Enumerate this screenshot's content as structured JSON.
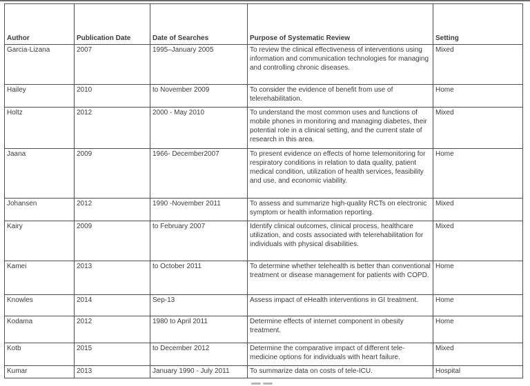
{
  "table": {
    "columns": [
      "Author",
      "Publication Date",
      "Date of Searches",
      "Purpose of Systematic Review",
      "Setting"
    ],
    "rows": [
      {
        "author": "Garcia-Lizana",
        "publication_date": "2007",
        "date_of_searches": "1995–January 2005",
        "purpose": "To review the clinical effectiveness of interventions using information and communication technologies for managing and controlling chronic diseases.",
        "setting": "Mixed"
      },
      {
        "author": "Hailey",
        "publication_date": "2010",
        "date_of_searches": "to November 2009",
        "purpose": "To consider the evidence of benefit from use of telerehabilitation.",
        "setting": "Home"
      },
      {
        "author": "Holtz",
        "publication_date": "2012",
        "date_of_searches": "2000 - May 2010",
        "purpose": "To understand the most common uses and functions of mobile phones in monitoring and managing diabetes, their potential role in a clinical setting, and the current state of research in this area.",
        "setting": "Mixed"
      },
      {
        "author": "Jaana",
        "publication_date": "2009",
        "date_of_searches": "1966- December2007",
        "purpose": "To present evidence on effects of home telemonitoring for respiratory conditions in relation to data quality, patient medical condition, utilization of health services, feasibility and use, and economic viability.",
        "setting": "Home"
      },
      {
        "author": "Johansen",
        "publication_date": "2012",
        "date_of_searches": "1990 -November 2011",
        "purpose": "To assess and summarize high-quality RCTs on electronic symptom or health information reporting.",
        "setting": "Mixed"
      },
      {
        "author": "Kairy",
        "publication_date": "2009",
        "date_of_searches": "to February 2007",
        "purpose": "Identify clinical outcomes, clinical process, healthcare utilization, and costs associated with telerehabilitation for individuals with physical disabilities.",
        "setting": "Mixed"
      },
      {
        "author": "Kamei",
        "publication_date": "2013",
        "date_of_searches": "to October 2011",
        "purpose": "To determine whether telehealth is better than conventional treatment or disease management for patients with COPD.",
        "setting": "Home"
      },
      {
        "author": "Knowles",
        "publication_date": "2014",
        "date_of_searches": "Sep-13",
        "purpose": "Assess impact of eHealth interventions in GI treatment.",
        "setting": "Home"
      },
      {
        "author": "Kodama",
        "publication_date": "2012",
        "date_of_searches": "1980 to April 2011",
        "purpose": "Determine effects of internet component in obesity treatment.",
        "setting": "Home"
      },
      {
        "author": "Kotb",
        "publication_date": "2015",
        "date_of_searches": "to December 2012",
        "purpose": "Determine the comparative impact of different tele-medicine options for individuals with heart failure.",
        "setting": "Mixed"
      },
      {
        "author": "Kumar",
        "publication_date": "2013",
        "date_of_searches": "January 1990 - July 2011",
        "purpose": "To summarize data on costs of tele-ICU.",
        "setting": "Hospital"
      }
    ]
  }
}
